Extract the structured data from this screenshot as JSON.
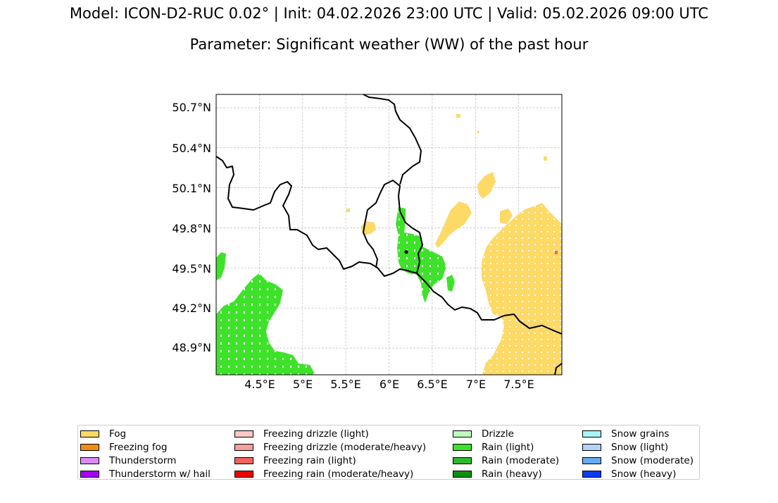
{
  "header": {
    "line1": "Model: ICON-D2-RUC 0.02° | Init: 04.02.2026 23:00 UTC | Valid: 05.02.2026 09:00 UTC",
    "line2": "Parameter: Significant weather (WW) of the past hour"
  },
  "map": {
    "lon_range": [
      4.0,
      8.0
    ],
    "lat_range": [
      48.7,
      50.8
    ],
    "gridlines": true,
    "lon_ticks": [
      "4.5°E",
      "5°E",
      "5.5°E",
      "6°E",
      "6.5°E",
      "7°E",
      "7.5°E"
    ],
    "lat_ticks": [
      "50.7°N",
      "50.4°N",
      "50.1°N",
      "49.8°N",
      "49.5°N",
      "49.2°N",
      "48.9°N"
    ],
    "marker": {
      "lon": 6.2,
      "lat": 49.62
    }
  },
  "legend": {
    "columns": [
      [
        {
          "label": "Fog",
          "color": "#fdd966"
        },
        {
          "label": "Freezing fog",
          "color": "#f58c12"
        },
        {
          "label": "Thunderstorm",
          "color": "#dc8cf2"
        },
        {
          "label": "Thunderstorm w/ hail",
          "color": "#a500f5"
        }
      ],
      [
        {
          "label": "Freezing drizzle (light)",
          "color": "#fcc8c8"
        },
        {
          "label": "Freezing drizzle (moderate/heavy)",
          "color": "#f5a09b"
        },
        {
          "label": "Freezing rain (light)",
          "color": "#f0645f"
        },
        {
          "label": "Freezing rain (moderate/heavy)",
          "color": "#f00000"
        }
      ],
      [
        {
          "label": "Drizzle",
          "color": "#c0fac0"
        },
        {
          "label": "Rain (light)",
          "color": "#3ee22a"
        },
        {
          "label": "Rain (moderate)",
          "color": "#2eb82e"
        },
        {
          "label": "Rain (heavy)",
          "color": "#0f8f0f"
        }
      ],
      [
        {
          "label": "Snow grains",
          "color": "#a8f5f7"
        },
        {
          "label": "Snow (light)",
          "color": "#b4d2f5"
        },
        {
          "label": "Snow (moderate)",
          "color": "#64aaf5"
        },
        {
          "label": "Snow (heavy)",
          "color": "#0a3cf5"
        }
      ]
    ]
  }
}
